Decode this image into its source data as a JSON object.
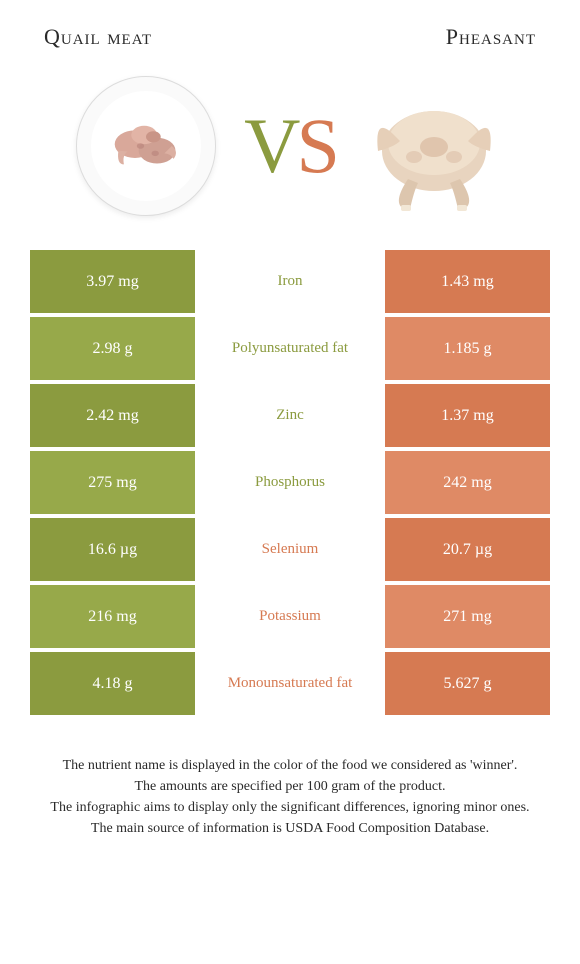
{
  "colors": {
    "left": "#8b9b3f",
    "right": "#d67a52",
    "left_alt": "#97a94a",
    "right_alt": "#df8a65",
    "text_dark": "#2a2a2a"
  },
  "titles": {
    "left": "Quail meat",
    "right": "Pheasant"
  },
  "vs": {
    "v": "V",
    "s": "S"
  },
  "rows": [
    {
      "nutrient": "Iron",
      "left": "3.97 mg",
      "right": "1.43 mg",
      "winner": "left"
    },
    {
      "nutrient": "Polyunsaturated fat",
      "left": "2.98 g",
      "right": "1.185 g",
      "winner": "left"
    },
    {
      "nutrient": "Zinc",
      "left": "2.42 mg",
      "right": "1.37 mg",
      "winner": "left"
    },
    {
      "nutrient": "Phosphorus",
      "left": "275 mg",
      "right": "242 mg",
      "winner": "left"
    },
    {
      "nutrient": "Selenium",
      "left": "16.6 µg",
      "right": "20.7 µg",
      "winner": "right"
    },
    {
      "nutrient": "Potassium",
      "left": "216 mg",
      "right": "271 mg",
      "winner": "right"
    },
    {
      "nutrient": "Monounsaturated fat",
      "left": "4.18 g",
      "right": "5.627 g",
      "winner": "right"
    }
  ],
  "footer": [
    "The nutrient name is displayed in the color of the food we considered as 'winner'.",
    "The amounts are specified per 100 gram of the product.",
    "The infographic aims to display only the significant differences, ignoring minor ones.",
    "The main source of information is USDA Food Composition Database."
  ]
}
